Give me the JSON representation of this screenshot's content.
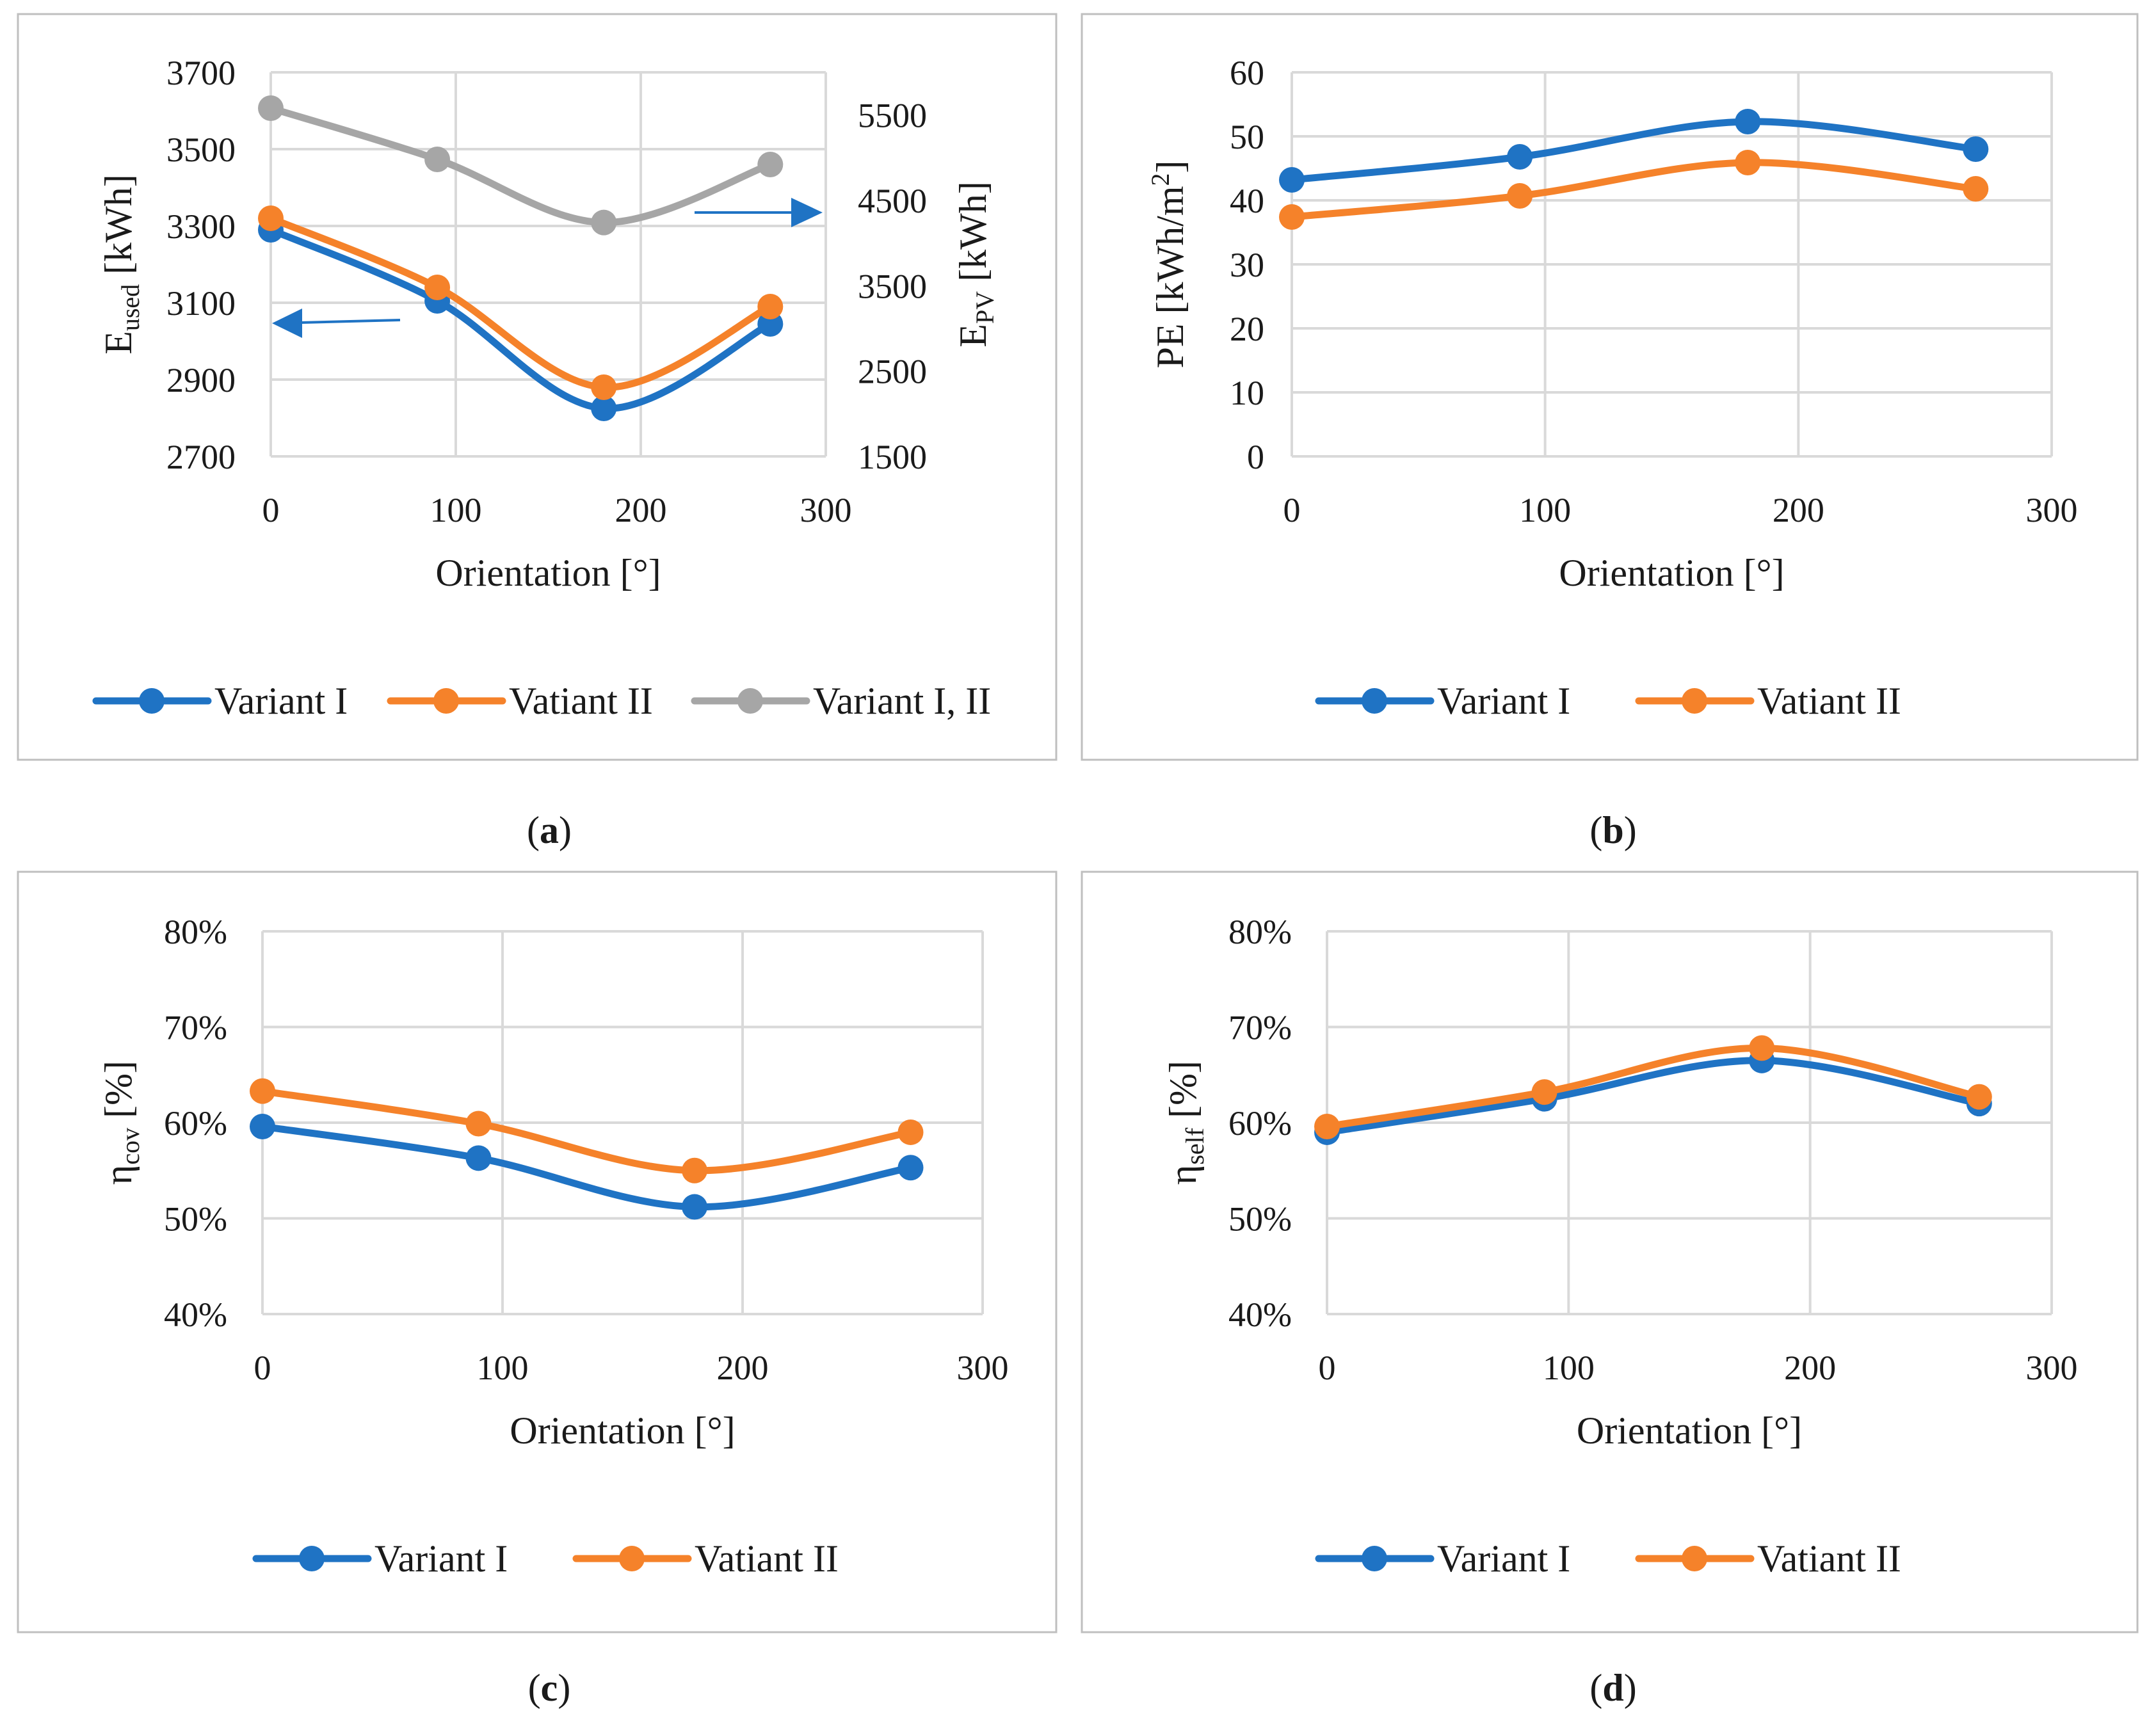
{
  "colors": {
    "variant_i": "#1f73c4",
    "variant_ii": "#f5822a",
    "variant_i_ii": "#a6a6a6",
    "grid": "#d9d9d9",
    "frame": "#bfbfbf"
  },
  "chart_data": [
    {
      "id": "a",
      "type": "line",
      "caption": {
        "open": "(",
        "letter": "a",
        "close": ")"
      },
      "xlabel": "Orientation [°]",
      "ylabel": {
        "main": "E",
        "sub": "used",
        "unit": " [kWh]"
      },
      "y2label": {
        "main": "E",
        "sub": "PV",
        "unit": " [kWh]"
      },
      "xlim": [
        0,
        300
      ],
      "xticks": [
        "0",
        "100",
        "200",
        "300"
      ],
      "ylim": [
        2700,
        3700
      ],
      "yticks": [
        "2700",
        "2900",
        "3100",
        "3300",
        "3500",
        "3700"
      ],
      "y2lim": [
        1500,
        6000
      ],
      "y2ticks": [
        "1500",
        "2500",
        "3500",
        "4500",
        "5500"
      ],
      "grid": true,
      "legend_position": "bottom",
      "series": [
        {
          "name": "Variant I",
          "color_key": "variant_i",
          "axis": "left",
          "x": [
            0,
            90,
            180,
            270
          ],
          "values": [
            3290,
            3105,
            2825,
            3045
          ]
        },
        {
          "name": "Vatiant II",
          "color_key": "variant_ii",
          "axis": "left",
          "x": [
            0,
            90,
            180,
            270
          ],
          "values": [
            3320,
            3140,
            2880,
            3090
          ]
        },
        {
          "name": "Variant I, II",
          "color_key": "variant_i_ii",
          "axis": "right",
          "x": [
            0,
            90,
            180,
            270
          ],
          "values": [
            5580,
            4980,
            4240,
            4920
          ]
        }
      ],
      "annotations": [
        {
          "type": "arrow",
          "direction": "left",
          "meaning": "left axis series"
        },
        {
          "type": "arrow",
          "direction": "right",
          "meaning": "right axis series"
        }
      ]
    },
    {
      "id": "b",
      "type": "line",
      "caption": {
        "open": "(",
        "letter": "b",
        "close": ")"
      },
      "xlabel": "Orientation [°]",
      "ylabel": {
        "main": "PE [kWh/m",
        "sup": "2",
        "unit": "]"
      },
      "xlim": [
        0,
        300
      ],
      "xticks": [
        "0",
        "100",
        "200",
        "300"
      ],
      "ylim": [
        0,
        60
      ],
      "yticks": [
        "0",
        "10",
        "20",
        "30",
        "40",
        "50",
        "60"
      ],
      "grid": true,
      "legend_position": "bottom",
      "series": [
        {
          "name": "Variant I",
          "color_key": "variant_i",
          "x": [
            0,
            90,
            180,
            270
          ],
          "values": [
            43.2,
            46.8,
            52.3,
            48.0
          ]
        },
        {
          "name": "Vatiant II",
          "color_key": "variant_ii",
          "x": [
            0,
            90,
            180,
            270
          ],
          "values": [
            37.4,
            40.7,
            45.9,
            41.8
          ]
        }
      ]
    },
    {
      "id": "c",
      "type": "line",
      "caption": {
        "open": "(",
        "letter": "c",
        "close": ")"
      },
      "xlabel": "Orientation [°]",
      "ylabel": {
        "main": "η",
        "sub": "cov",
        "unit": " [%]"
      },
      "xlim": [
        0,
        300
      ],
      "xticks": [
        "0",
        "100",
        "200",
        "300"
      ],
      "ylim": [
        40,
        80
      ],
      "yticks": [
        "40%",
        "50%",
        "60%",
        "70%",
        "80%"
      ],
      "grid": true,
      "legend_position": "bottom",
      "series": [
        {
          "name": "Variant I",
          "color_key": "variant_i",
          "x": [
            0,
            90,
            180,
            270
          ],
          "values": [
            59.6,
            56.3,
            51.2,
            55.3
          ]
        },
        {
          "name": "Vatiant II",
          "color_key": "variant_ii",
          "x": [
            0,
            90,
            180,
            270
          ],
          "values": [
            63.3,
            59.9,
            55.0,
            59.0
          ]
        }
      ]
    },
    {
      "id": "d",
      "type": "line",
      "caption": {
        "open": "(",
        "letter": "d",
        "close": ")"
      },
      "xlabel": "Orientation [°]",
      "ylabel": {
        "main": "η",
        "sub": "self",
        "unit": " [%]"
      },
      "xlim": [
        0,
        300
      ],
      "xticks": [
        "0",
        "100",
        "200",
        "300"
      ],
      "ylim": [
        40,
        80
      ],
      "yticks": [
        "40%",
        "50%",
        "60%",
        "70%",
        "80%"
      ],
      "grid": true,
      "legend_position": "bottom",
      "series": [
        {
          "name": "Variant I",
          "color_key": "variant_i",
          "x": [
            0,
            90,
            180,
            270
          ],
          "values": [
            59.0,
            62.5,
            66.5,
            62.0
          ]
        },
        {
          "name": "Vatiant II",
          "color_key": "variant_ii",
          "x": [
            0,
            90,
            180,
            270
          ],
          "values": [
            59.6,
            63.2,
            67.8,
            62.7
          ]
        }
      ]
    }
  ]
}
